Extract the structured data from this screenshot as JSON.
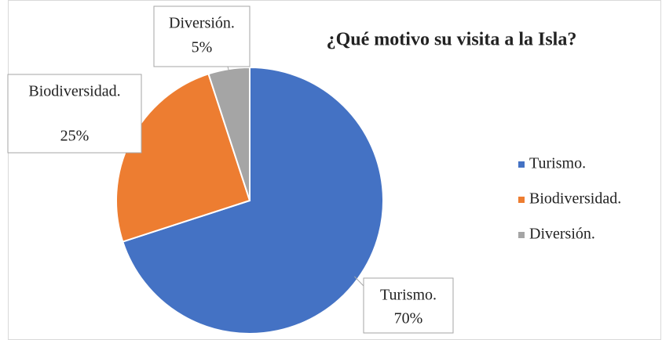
{
  "chart_data": {
    "type": "pie",
    "title": "¿Qué motivo su visita a la Isla?",
    "categories": [
      "Turismo.",
      "Biodiversidad.",
      "Diversión."
    ],
    "values": [
      70,
      25,
      5
    ],
    "value_labels": [
      "70%",
      "25%",
      "5%"
    ],
    "colors": [
      "#4472c4",
      "#ed7d31",
      "#a5a5a5"
    ],
    "legend": "right"
  }
}
